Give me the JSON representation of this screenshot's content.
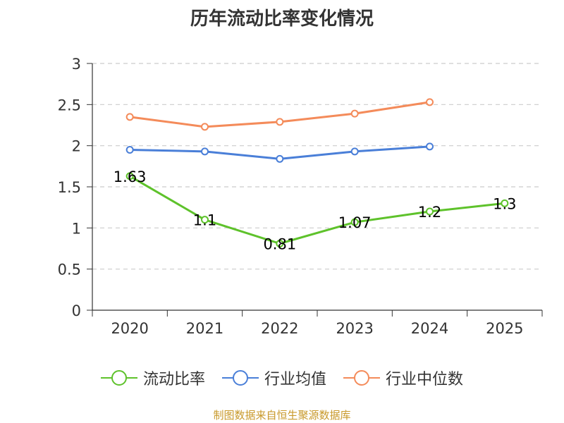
{
  "chart_data": {
    "type": "line",
    "title": "历年流动比率变化情况",
    "categories": [
      "2020",
      "2021",
      "2022",
      "2023",
      "2024",
      "2025"
    ],
    "ylim": [
      0,
      3
    ],
    "yticks": [
      "0",
      "0.5",
      "1",
      "1.5",
      "2",
      "2.5",
      "3"
    ],
    "grid": true,
    "legend_position": "bottom",
    "series": [
      {
        "name": "流动比率",
        "color": "#5ec22b",
        "values": [
          1.63,
          1.1,
          0.81,
          1.07,
          1.2,
          1.3
        ],
        "labels": [
          "1.63",
          "1.1",
          "0.81",
          "1.07",
          "1.2",
          "1.3"
        ]
      },
      {
        "name": "行业均值",
        "color": "#4a7fd8",
        "values": [
          1.95,
          1.93,
          1.84,
          1.93,
          1.99,
          null
        ]
      },
      {
        "name": "行业中位数",
        "color": "#f48b5a",
        "values": [
          2.35,
          2.23,
          2.29,
          2.39,
          2.53,
          null
        ]
      }
    ]
  },
  "source": "制图数据来自恒生聚源数据库"
}
